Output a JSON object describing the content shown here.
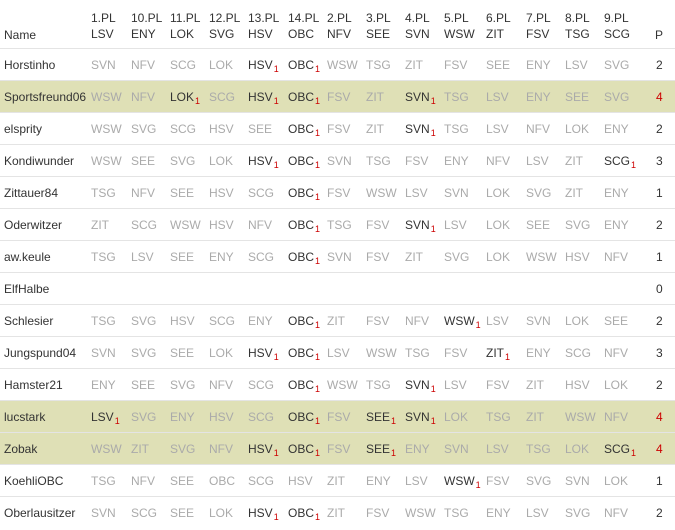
{
  "header": {
    "name_label": "Name",
    "total_label": "P",
    "columns": [
      {
        "round": "1.PL",
        "team": "LSV"
      },
      {
        "round": "10.PL",
        "team": "ENY"
      },
      {
        "round": "11.PL",
        "team": "LOK"
      },
      {
        "round": "12.PL",
        "team": "SVG"
      },
      {
        "round": "13.PL",
        "team": "HSV"
      },
      {
        "round": "14.PL",
        "team": "OBC"
      },
      {
        "round": "2.PL",
        "team": "NFV"
      },
      {
        "round": "3.PL",
        "team": "SEE"
      },
      {
        "round": "4.PL",
        "team": "SVN"
      },
      {
        "round": "5.PL",
        "team": "WSW"
      },
      {
        "round": "6.PL",
        "team": "ZIT"
      },
      {
        "round": "7.PL",
        "team": "FSV"
      },
      {
        "round": "8.PL",
        "team": "TSG"
      },
      {
        "round": "9.PL",
        "team": "SCG"
      }
    ]
  },
  "rows": [
    {
      "name": "Horstinho",
      "total": 2,
      "highlight": false,
      "picks": [
        {
          "team": "SVN"
        },
        {
          "team": "NFV"
        },
        {
          "team": "SCG"
        },
        {
          "team": "LOK"
        },
        {
          "team": "HSV",
          "points": 1
        },
        {
          "team": "OBC",
          "points": 1
        },
        {
          "team": "WSW"
        },
        {
          "team": "TSG"
        },
        {
          "team": "ZIT"
        },
        {
          "team": "FSV"
        },
        {
          "team": "SEE"
        },
        {
          "team": "ENY"
        },
        {
          "team": "LSV"
        },
        {
          "team": "SVG"
        }
      ]
    },
    {
      "name": "Sportsfreund06",
      "total": 4,
      "highlight": true,
      "picks": [
        {
          "team": "WSW"
        },
        {
          "team": "NFV"
        },
        {
          "team": "LOK",
          "points": 1
        },
        {
          "team": "SCG"
        },
        {
          "team": "HSV",
          "points": 1
        },
        {
          "team": "OBC",
          "points": 1
        },
        {
          "team": "FSV"
        },
        {
          "team": "ZIT"
        },
        {
          "team": "SVN",
          "points": 1
        },
        {
          "team": "TSG"
        },
        {
          "team": "LSV"
        },
        {
          "team": "ENY"
        },
        {
          "team": "SEE"
        },
        {
          "team": "SVG"
        }
      ]
    },
    {
      "name": "elsprity",
      "total": 2,
      "highlight": false,
      "picks": [
        {
          "team": "WSW"
        },
        {
          "team": "SVG"
        },
        {
          "team": "SCG"
        },
        {
          "team": "HSV"
        },
        {
          "team": "SEE"
        },
        {
          "team": "OBC",
          "points": 1
        },
        {
          "team": "FSV"
        },
        {
          "team": "ZIT"
        },
        {
          "team": "SVN",
          "points": 1
        },
        {
          "team": "TSG"
        },
        {
          "team": "LSV"
        },
        {
          "team": "NFV"
        },
        {
          "team": "LOK"
        },
        {
          "team": "ENY"
        }
      ]
    },
    {
      "name": "Kondiwunder",
      "total": 3,
      "highlight": false,
      "picks": [
        {
          "team": "WSW"
        },
        {
          "team": "SEE"
        },
        {
          "team": "SVG"
        },
        {
          "team": "LOK"
        },
        {
          "team": "HSV",
          "points": 1
        },
        {
          "team": "OBC",
          "points": 1
        },
        {
          "team": "SVN"
        },
        {
          "team": "TSG"
        },
        {
          "team": "FSV"
        },
        {
          "team": "ENY"
        },
        {
          "team": "NFV"
        },
        {
          "team": "LSV"
        },
        {
          "team": "ZIT"
        },
        {
          "team": "SCG",
          "points": 1
        }
      ]
    },
    {
      "name": "Zittauer84",
      "total": 1,
      "highlight": false,
      "picks": [
        {
          "team": "TSG"
        },
        {
          "team": "NFV"
        },
        {
          "team": "SEE"
        },
        {
          "team": "HSV"
        },
        {
          "team": "SCG"
        },
        {
          "team": "OBC",
          "points": 1
        },
        {
          "team": "FSV"
        },
        {
          "team": "WSW"
        },
        {
          "team": "LSV"
        },
        {
          "team": "SVN"
        },
        {
          "team": "LOK"
        },
        {
          "team": "SVG"
        },
        {
          "team": "ZIT"
        },
        {
          "team": "ENY"
        }
      ]
    },
    {
      "name": "Oderwitzer",
      "total": 2,
      "highlight": false,
      "picks": [
        {
          "team": "ZIT"
        },
        {
          "team": "SCG"
        },
        {
          "team": "WSW"
        },
        {
          "team": "HSV"
        },
        {
          "team": "NFV"
        },
        {
          "team": "OBC",
          "points": 1
        },
        {
          "team": "TSG"
        },
        {
          "team": "FSV"
        },
        {
          "team": "SVN",
          "points": 1
        },
        {
          "team": "LSV"
        },
        {
          "team": "LOK"
        },
        {
          "team": "SEE"
        },
        {
          "team": "SVG"
        },
        {
          "team": "ENY"
        }
      ]
    },
    {
      "name": "aw.keule",
      "total": 1,
      "highlight": false,
      "picks": [
        {
          "team": "TSG"
        },
        {
          "team": "LSV"
        },
        {
          "team": "SEE"
        },
        {
          "team": "ENY"
        },
        {
          "team": "SCG"
        },
        {
          "team": "OBC",
          "points": 1
        },
        {
          "team": "SVN"
        },
        {
          "team": "FSV"
        },
        {
          "team": "ZIT"
        },
        {
          "team": "SVG"
        },
        {
          "team": "LOK"
        },
        {
          "team": "WSW"
        },
        {
          "team": "HSV"
        },
        {
          "team": "NFV"
        }
      ]
    },
    {
      "name": "ElfHalbe",
      "total": 0,
      "highlight": false,
      "picks": []
    },
    {
      "name": "Schlesier",
      "total": 2,
      "highlight": false,
      "picks": [
        {
          "team": "TSG"
        },
        {
          "team": "SVG"
        },
        {
          "team": "HSV"
        },
        {
          "team": "SCG"
        },
        {
          "team": "ENY"
        },
        {
          "team": "OBC",
          "points": 1
        },
        {
          "team": "ZIT"
        },
        {
          "team": "FSV"
        },
        {
          "team": "NFV"
        },
        {
          "team": "WSW",
          "points": 1
        },
        {
          "team": "LSV"
        },
        {
          "team": "SVN"
        },
        {
          "team": "LOK"
        },
        {
          "team": "SEE"
        }
      ]
    },
    {
      "name": "Jungspund04",
      "total": 3,
      "highlight": false,
      "picks": [
        {
          "team": "SVN"
        },
        {
          "team": "SVG"
        },
        {
          "team": "SEE"
        },
        {
          "team": "LOK"
        },
        {
          "team": "HSV",
          "points": 1
        },
        {
          "team": "OBC",
          "points": 1
        },
        {
          "team": "LSV"
        },
        {
          "team": "WSW"
        },
        {
          "team": "TSG"
        },
        {
          "team": "FSV"
        },
        {
          "team": "ZIT",
          "points": 1
        },
        {
          "team": "ENY"
        },
        {
          "team": "SCG"
        },
        {
          "team": "NFV"
        }
      ]
    },
    {
      "name": "Hamster21",
      "total": 2,
      "highlight": false,
      "picks": [
        {
          "team": "ENY"
        },
        {
          "team": "SEE"
        },
        {
          "team": "SVG"
        },
        {
          "team": "NFV"
        },
        {
          "team": "SCG"
        },
        {
          "team": "OBC",
          "points": 1
        },
        {
          "team": "WSW"
        },
        {
          "team": "TSG"
        },
        {
          "team": "SVN",
          "points": 1
        },
        {
          "team": "LSV"
        },
        {
          "team": "FSV"
        },
        {
          "team": "ZIT"
        },
        {
          "team": "HSV"
        },
        {
          "team": "LOK"
        }
      ]
    },
    {
      "name": "lucstark",
      "total": 4,
      "highlight": true,
      "picks": [
        {
          "team": "LSV",
          "points": 1
        },
        {
          "team": "SVG"
        },
        {
          "team": "ENY"
        },
        {
          "team": "HSV"
        },
        {
          "team": "SCG"
        },
        {
          "team": "OBC",
          "points": 1
        },
        {
          "team": "FSV"
        },
        {
          "team": "SEE",
          "points": 1
        },
        {
          "team": "SVN",
          "points": 1
        },
        {
          "team": "LOK"
        },
        {
          "team": "TSG"
        },
        {
          "team": "ZIT"
        },
        {
          "team": "WSW"
        },
        {
          "team": "NFV"
        }
      ]
    },
    {
      "name": "Zobak",
      "total": 4,
      "highlight": true,
      "picks": [
        {
          "team": "WSW"
        },
        {
          "team": "ZIT"
        },
        {
          "team": "SVG"
        },
        {
          "team": "NFV"
        },
        {
          "team": "HSV",
          "points": 1
        },
        {
          "team": "OBC",
          "points": 1
        },
        {
          "team": "FSV"
        },
        {
          "team": "SEE",
          "points": 1
        },
        {
          "team": "ENY"
        },
        {
          "team": "SVN"
        },
        {
          "team": "LSV"
        },
        {
          "team": "TSG"
        },
        {
          "team": "LOK"
        },
        {
          "team": "SCG",
          "points": 1
        }
      ]
    },
    {
      "name": "KoehliOBC",
      "total": 1,
      "highlight": false,
      "picks": [
        {
          "team": "TSG"
        },
        {
          "team": "NFV"
        },
        {
          "team": "SEE"
        },
        {
          "team": "OBC"
        },
        {
          "team": "SCG"
        },
        {
          "team": "HSV"
        },
        {
          "team": "ZIT"
        },
        {
          "team": "ENY"
        },
        {
          "team": "LSV"
        },
        {
          "team": "WSW",
          "points": 1
        },
        {
          "team": "FSV"
        },
        {
          "team": "SVG"
        },
        {
          "team": "SVN"
        },
        {
          "team": "LOK"
        }
      ]
    },
    {
      "name": "Oberlausitzer",
      "total": 2,
      "highlight": false,
      "picks": [
        {
          "team": "SVN"
        },
        {
          "team": "SCG"
        },
        {
          "team": "SEE"
        },
        {
          "team": "LOK"
        },
        {
          "team": "HSV",
          "points": 1
        },
        {
          "team": "OBC",
          "points": 1
        },
        {
          "team": "ZIT"
        },
        {
          "team": "FSV"
        },
        {
          "team": "WSW"
        },
        {
          "team": "TSG"
        },
        {
          "team": "ENY"
        },
        {
          "team": "LSV"
        },
        {
          "team": "SVG"
        },
        {
          "team": "NFV"
        }
      ]
    }
  ]
}
